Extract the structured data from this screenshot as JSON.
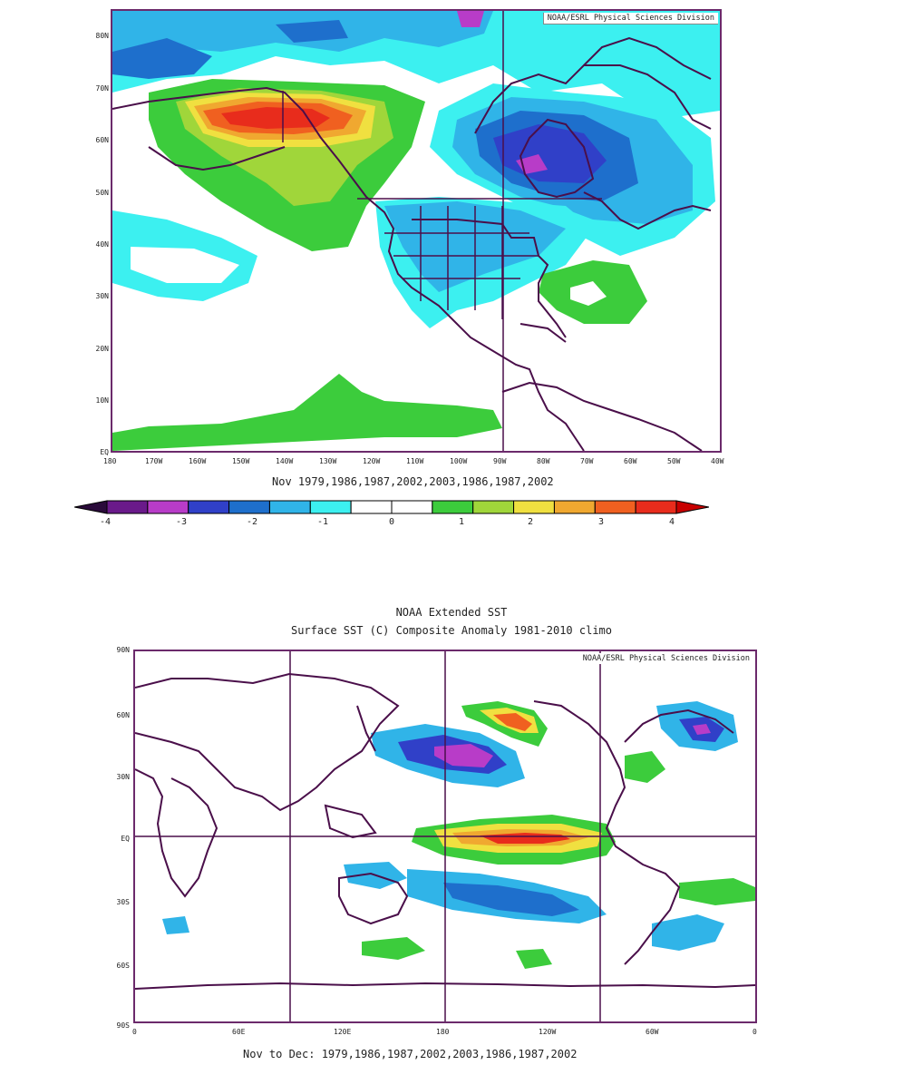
{
  "top_map": {
    "credit": "NOAA/ESRL Physical Sciences Division",
    "caption": "Nov 1979,1986,1987,2002,2003,1986,1987,2002",
    "lat_ticks": [
      "80N",
      "70N",
      "60N",
      "50N",
      "40N",
      "30N",
      "20N",
      "10N",
      "EQ"
    ],
    "lon_ticks": [
      "180",
      "170W",
      "160W",
      "150W",
      "140W",
      "130W",
      "120W",
      "110W",
      "100W",
      "90W",
      "80W",
      "70W",
      "60W",
      "50W",
      "40W"
    ],
    "lat_range": [
      0,
      85
    ],
    "lon_range": [
      -180,
      -40
    ]
  },
  "colorbar": {
    "labels": [
      "-4",
      "-3",
      "-2",
      "-1",
      "0",
      "1",
      "2",
      "3",
      "4"
    ],
    "colors": [
      "#2a0a3a",
      "#6a1a8a",
      "#b83cc8",
      "#3040c8",
      "#1e6fcc",
      "#30b4e8",
      "#3cf0f0",
      "#ffffff",
      "#ffffff",
      "#3ccc3c",
      "#a0d63a",
      "#f0e040",
      "#f0a830",
      "#f06020",
      "#e82c1c",
      "#c80000"
    ]
  },
  "bottom_map": {
    "title_line1": "NOAA Extended SST",
    "title_line2": "Surface SST (C) Composite Anomaly 1981-2010 climo",
    "credit": "NOAA/ESRL Physical Sciences Division",
    "caption": "Nov to Dec: 1979,1986,1987,2002,2003,1986,1987,2002",
    "lat_ticks": [
      "90N",
      "60N",
      "30N",
      "EQ",
      "30S",
      "60S",
      "90S"
    ],
    "lon_ticks": [
      "0",
      "60E",
      "120E",
      "180",
      "120W",
      "60W",
      "0"
    ],
    "lat_range": [
      -90,
      90
    ],
    "lon_range": [
      0,
      360
    ]
  }
}
